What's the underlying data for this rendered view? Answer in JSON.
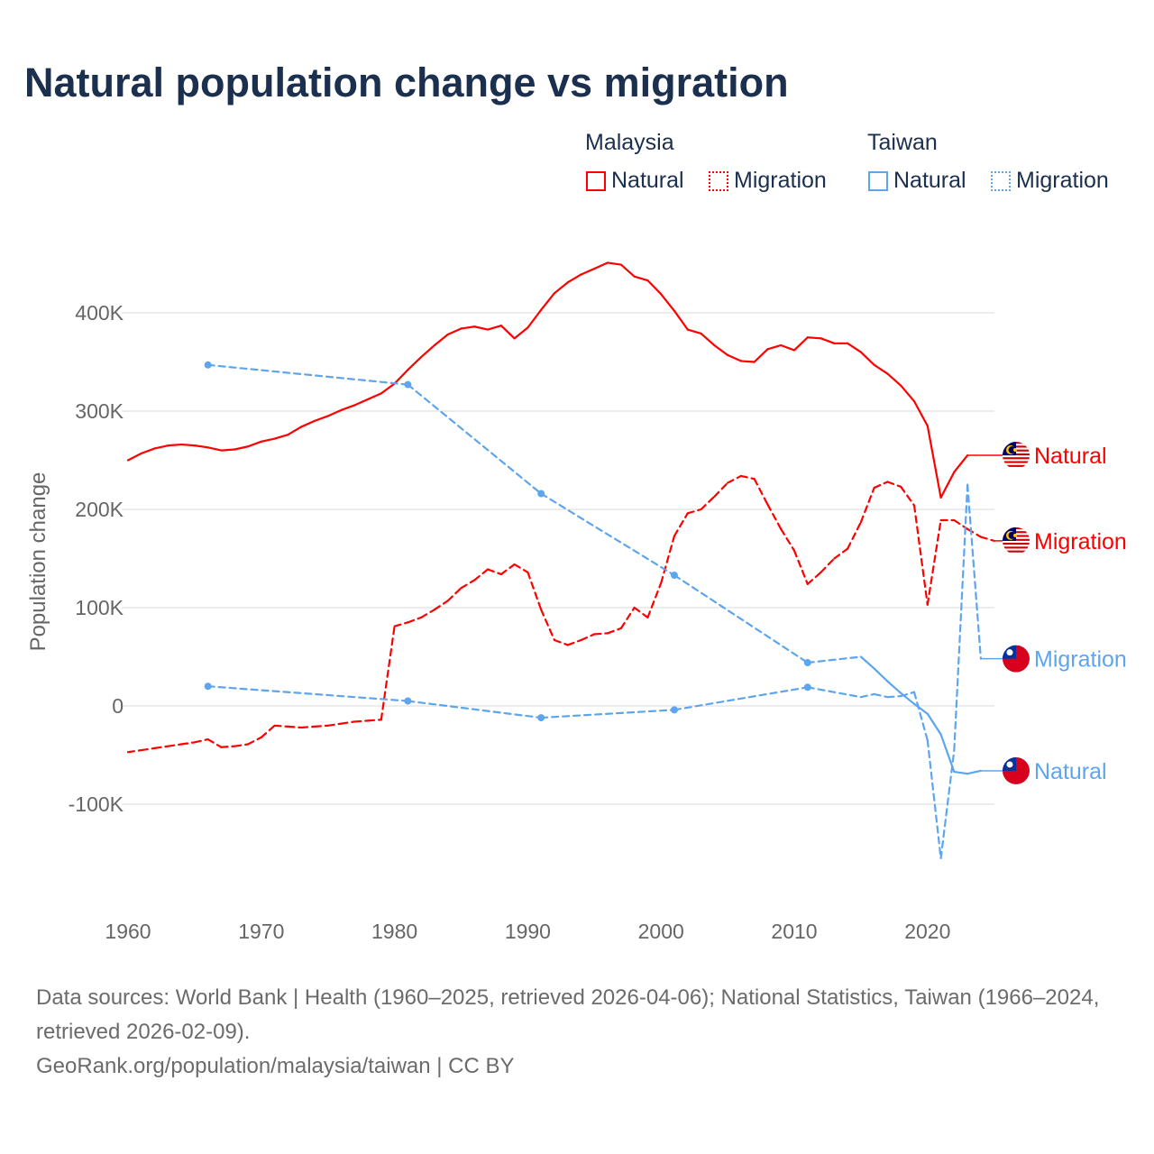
{
  "title": "Natural population change vs migration",
  "legend": {
    "groups": [
      {
        "name": "Malaysia",
        "color": "#ff0000",
        "items": [
          "Natural",
          "Migration"
        ]
      },
      {
        "name": "Taiwan",
        "color": "#5da5ee",
        "items": [
          "Natural",
          "Migration"
        ]
      }
    ]
  },
  "chart_data": {
    "type": "line",
    "ylabel": "Population change",
    "xlim": [
      1960,
      2025
    ],
    "ylim": [
      -150000,
      450000
    ],
    "xticks": [
      "1960",
      "1970",
      "1980",
      "1990",
      "2000",
      "2010",
      "2020"
    ],
    "yticks": [
      {
        "v": 400,
        "label": "400K"
      },
      {
        "v": 300,
        "label": "300K"
      },
      {
        "v": 200,
        "label": "200K"
      },
      {
        "v": 100,
        "label": "100K"
      },
      {
        "v": 0,
        "label": "0"
      },
      {
        "v": -100,
        "label": "-100K"
      }
    ],
    "units_note": "values in thousands",
    "series": [
      {
        "country": "Malaysia",
        "name": "Natural",
        "label": "Natural",
        "color": "#ff0000",
        "flag": "malaysia-flag",
        "dash": false,
        "label_value": 255,
        "x": [
          1960,
          1961,
          1962,
          1963,
          1964,
          1965,
          1966,
          1967,
          1968,
          1969,
          1970,
          1971,
          1972,
          1973,
          1974,
          1975,
          1976,
          1977,
          1978,
          1979,
          1980,
          1981,
          1982,
          1983,
          1984,
          1985,
          1986,
          1987,
          1988,
          1989,
          1990,
          1991,
          1992,
          1993,
          1994,
          1995,
          1996,
          1997,
          1998,
          1999,
          2000,
          2001,
          2002,
          2003,
          2004,
          2005,
          2006,
          2007,
          2008,
          2009,
          2010,
          2011,
          2012,
          2013,
          2014,
          2015,
          2016,
          2017,
          2018,
          2019,
          2020,
          2021,
          2022,
          2023
        ],
        "y": [
          250,
          257,
          262,
          265,
          266,
          265,
          263,
          260,
          261,
          264,
          269,
          272,
          276,
          284,
          290,
          295,
          301,
          306,
          312,
          318,
          328,
          342,
          355,
          367,
          378,
          384,
          386,
          383,
          387,
          374,
          385,
          403,
          420,
          431,
          439,
          445,
          451,
          449,
          437,
          433,
          419,
          402,
          383,
          379,
          367,
          357,
          351,
          350,
          363,
          367,
          362,
          375,
          374,
          369,
          369,
          360,
          347,
          338,
          326,
          310,
          285,
          212,
          238,
          255
        ]
      },
      {
        "country": "Malaysia",
        "name": "Migration",
        "label": "Migration",
        "color": "#ff0000",
        "flag": "malaysia-flag",
        "dash": true,
        "label_value": 168,
        "x": [
          1960,
          1961,
          1962,
          1963,
          1964,
          1965,
          1966,
          1967,
          1968,
          1969,
          1970,
          1971,
          1972,
          1973,
          1974,
          1975,
          1976,
          1977,
          1978,
          1979,
          1980,
          1981,
          1982,
          1983,
          1984,
          1985,
          1986,
          1987,
          1988,
          1989,
          1990,
          1991,
          1992,
          1993,
          1994,
          1995,
          1996,
          1997,
          1998,
          1999,
          2000,
          2001,
          2002,
          2003,
          2004,
          2005,
          2006,
          2007,
          2008,
          2009,
          2010,
          2011,
          2012,
          2013,
          2014,
          2015,
          2016,
          2017,
          2018,
          2019,
          2020,
          2021,
          2022,
          2023,
          2024,
          2025
        ],
        "y": [
          -47,
          -45,
          -43,
          -41,
          -39,
          -37,
          -34,
          -42,
          -41,
          -39,
          -32,
          -20,
          -21,
          -22,
          -21,
          -20,
          -18,
          -16,
          -15,
          -14,
          81,
          85,
          90,
          98,
          107,
          120,
          128,
          139,
          134,
          144,
          136,
          98,
          67,
          62,
          67,
          73,
          74,
          79,
          100,
          90,
          125,
          173,
          196,
          200,
          213,
          227,
          234,
          231,
          205,
          180,
          158,
          124,
          136,
          150,
          160,
          187,
          222,
          228,
          223,
          204,
          103,
          189,
          189,
          180,
          172,
          168
        ]
      },
      {
        "country": "Taiwan",
        "name": "Migration",
        "label": "Migration",
        "color": "#5da5ee",
        "flag": "taiwan-flag",
        "dash": true,
        "label_value": 48,
        "x": [
          1966,
          1981,
          1991,
          2001,
          2011,
          2015,
          2016,
          2017,
          2018,
          2019,
          2020,
          2021,
          2022,
          2023,
          2024
        ],
        "y": [
          20,
          5,
          -12,
          -4,
          19,
          9,
          12,
          9,
          10,
          14,
          -35,
          -155,
          -45,
          225,
          48
        ]
      },
      {
        "country": "Taiwan",
        "name": "Natural",
        "label": "Natural",
        "color": "#5da5ee",
        "flag": "taiwan-flag",
        "dash": false,
        "label_value": -66,
        "x": [
          1966,
          1981,
          1991,
          2001,
          2011,
          2015,
          2016,
          2017,
          2018,
          2019,
          2020,
          2021,
          2022,
          2023,
          2024
        ],
        "y": [
          347,
          327,
          216,
          133,
          44,
          50,
          38,
          25,
          13,
          2,
          -8,
          -29,
          -67,
          -69,
          -66
        ]
      }
    ]
  },
  "footer": {
    "sources": "Data sources: World Bank | Health (1960–2025, retrieved 2026-04-06); National Statistics, Taiwan (1966–2024, retrieved 2026-02-09).",
    "credit": "GeoRank.org/population/malaysia/taiwan | CC BY"
  }
}
